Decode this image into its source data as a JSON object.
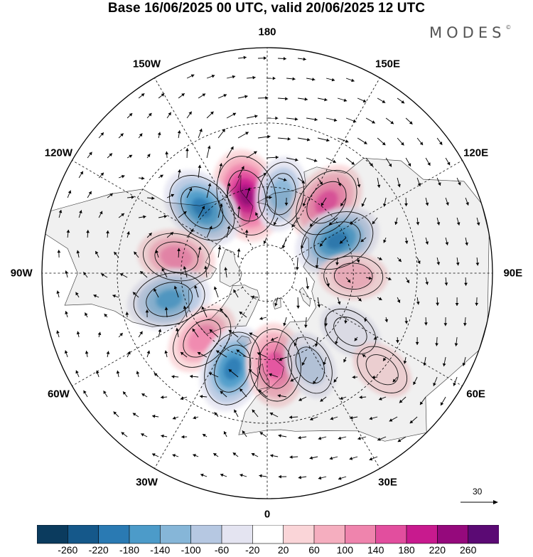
{
  "header": {
    "title": "Base 16/06/2025 00 UTC, valid 20/06/2025 12 UTC",
    "brand": "MODES",
    "brand_mark": "©"
  },
  "map": {
    "projection": "north-polar-stereographic",
    "land_color": "#f0f0f0",
    "longitude_labels": [
      {
        "name": "lon-label-180",
        "text": "180",
        "lon": 180
      },
      {
        "name": "lon-label-150e",
        "text": "150E",
        "lon": 150
      },
      {
        "name": "lon-label-120e",
        "text": "120E",
        "lon": 120
      },
      {
        "name": "lon-label-90e",
        "text": "90E",
        "lon": 90
      },
      {
        "name": "lon-label-60e",
        "text": "60E",
        "lon": 60
      },
      {
        "name": "lon-label-30e",
        "text": "30E",
        "lon": 30
      },
      {
        "name": "lon-label-0",
        "text": "0",
        "lon": 0
      },
      {
        "name": "lon-label-30w",
        "text": "30W",
        "lon": -30
      },
      {
        "name": "lon-label-60w",
        "text": "60W",
        "lon": -60
      },
      {
        "name": "lon-label-90w",
        "text": "90W",
        "lon": -90
      },
      {
        "name": "lon-label-120w",
        "text": "120W",
        "lon": -120
      },
      {
        "name": "lon-label-150w",
        "text": "150W",
        "lon": -150
      }
    ],
    "anomaly_centers": [
      {
        "sign": "positive",
        "value": 240,
        "lon": -165,
        "lat": 62
      },
      {
        "sign": "negative",
        "value": -200,
        "lon": -135,
        "lat": 58
      },
      {
        "sign": "negative",
        "value": -120,
        "lon": 170,
        "lat": 62
      },
      {
        "sign": "positive",
        "value": 180,
        "lon": 140,
        "lat": 58
      },
      {
        "sign": "negative",
        "value": -200,
        "lon": 115,
        "lat": 63
      },
      {
        "sign": "positive",
        "value": 80,
        "lon": 88,
        "lat": 60
      },
      {
        "sign": "positive",
        "value": 140,
        "lon": -100,
        "lat": 58
      },
      {
        "sign": "negative",
        "value": -180,
        "lon": -75,
        "lat": 55
      },
      {
        "sign": "positive",
        "value": 140,
        "lon": -45,
        "lat": 58
      },
      {
        "sign": "negative",
        "value": -200,
        "lon": -20,
        "lat": 55
      },
      {
        "sign": "positive",
        "value": 180,
        "lon": 5,
        "lat": 58
      },
      {
        "sign": "negative",
        "value": -80,
        "lon": 25,
        "lat": 55
      },
      {
        "sign": "negative",
        "value": -60,
        "lon": 55,
        "lat": 55
      },
      {
        "sign": "positive",
        "value": 60,
        "lon": 50,
        "lat": 40
      }
    ]
  },
  "reference_vector": {
    "label": "30"
  },
  "colorbar": {
    "colors": [
      "#0b3b5e",
      "#15588a",
      "#2a7ab3",
      "#4c9bc9",
      "#86b6d8",
      "#b6c8e2",
      "#e4e4f1",
      "#ffffff",
      "#fad5d8",
      "#f5aebf",
      "#ef84ad",
      "#e24e9e",
      "#c81a8e",
      "#95097c",
      "#5b0a74"
    ],
    "labels": [
      "-260",
      "-220",
      "-180",
      "-140",
      "-100",
      "-60",
      "-20",
      "20",
      "60",
      "100",
      "140",
      "180",
      "220",
      "260"
    ]
  }
}
